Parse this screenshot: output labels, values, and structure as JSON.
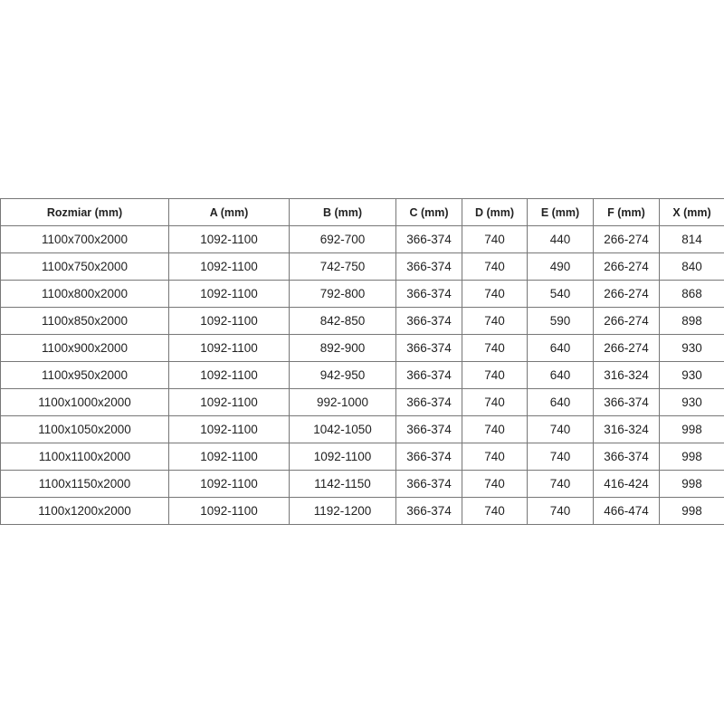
{
  "table": {
    "headers": [
      "Rozmiar (mm)",
      "A (mm)",
      "B (mm)",
      "C (mm)",
      "D (mm)",
      "E (mm)",
      "F (mm)",
      "X (mm)"
    ],
    "rows": [
      [
        "1100x700x2000",
        "1092-1100",
        "692-700",
        "366-374",
        "740",
        "440",
        "266-274",
        "814"
      ],
      [
        "1100x750x2000",
        "1092-1100",
        "742-750",
        "366-374",
        "740",
        "490",
        "266-274",
        "840"
      ],
      [
        "1100x800x2000",
        "1092-1100",
        "792-800",
        "366-374",
        "740",
        "540",
        "266-274",
        "868"
      ],
      [
        "1100x850x2000",
        "1092-1100",
        "842-850",
        "366-374",
        "740",
        "590",
        "266-274",
        "898"
      ],
      [
        "1100x900x2000",
        "1092-1100",
        "892-900",
        "366-374",
        "740",
        "640",
        "266-274",
        "930"
      ],
      [
        "1100x950x2000",
        "1092-1100",
        "942-950",
        "366-374",
        "740",
        "640",
        "316-324",
        "930"
      ],
      [
        "1100x1000x2000",
        "1092-1100",
        "992-1000",
        "366-374",
        "740",
        "640",
        "366-374",
        "930"
      ],
      [
        "1100x1050x2000",
        "1092-1100",
        "1042-1050",
        "366-374",
        "740",
        "740",
        "316-324",
        "998"
      ],
      [
        "1100x1100x2000",
        "1092-1100",
        "1092-1100",
        "366-374",
        "740",
        "740",
        "366-374",
        "998"
      ],
      [
        "1100x1150x2000",
        "1092-1100",
        "1142-1150",
        "366-374",
        "740",
        "740",
        "416-424",
        "998"
      ],
      [
        "1100x1200x2000",
        "1092-1100",
        "1192-1200",
        "366-374",
        "740",
        "740",
        "466-474",
        "998"
      ]
    ]
  }
}
